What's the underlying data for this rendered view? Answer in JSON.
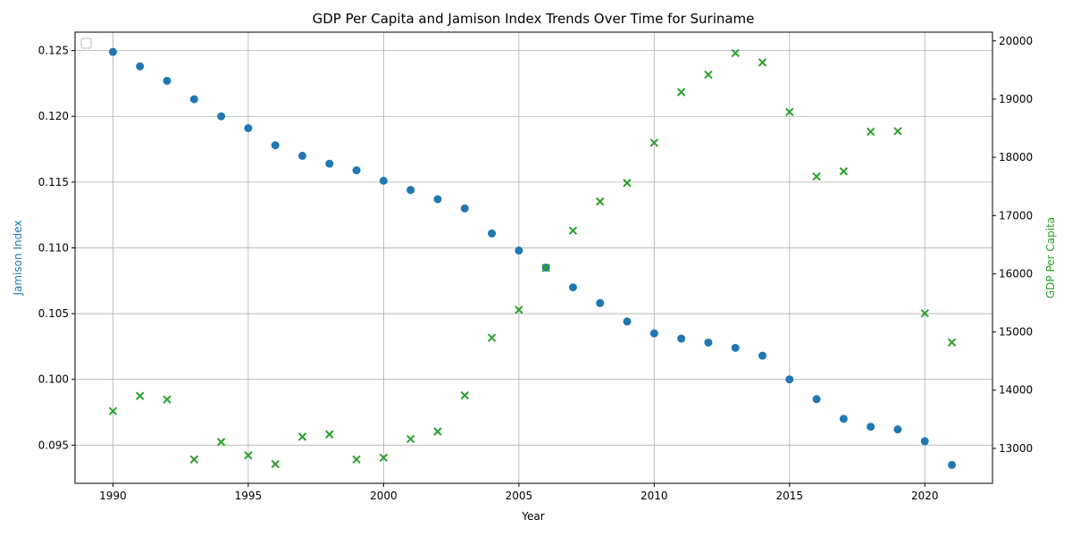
{
  "chart_data": {
    "type": "scatter",
    "title": "GDP Per Capita and Jamison Index Trends Over Time for Suriname",
    "xlabel": "Year",
    "ylabel_left": "Jamison Index",
    "ylabel_right": "GDP Per Capita",
    "xlim": [
      1988.6,
      2022.5
    ],
    "ylim_left": [
      0.0921,
      0.1264
    ],
    "ylim_right": [
      12400,
      20150
    ],
    "x_ticks": [
      1990,
      1995,
      2000,
      2005,
      2010,
      2015,
      2020
    ],
    "x_tick_labels": [
      "1990",
      "1995",
      "2000",
      "2005",
      "2010",
      "2015",
      "2020"
    ],
    "y_left_ticks": [
      0.095,
      0.1,
      0.105,
      0.11,
      0.115,
      0.12,
      0.125
    ],
    "y_left_tick_labels": [
      "0.095",
      "0.100",
      "0.105",
      "0.110",
      "0.115",
      "0.120",
      "0.125"
    ],
    "y_right_ticks": [
      13000,
      14000,
      15000,
      16000,
      17000,
      18000,
      19000,
      20000
    ],
    "y_right_tick_labels": [
      "13000",
      "14000",
      "15000",
      "16000",
      "17000",
      "18000",
      "19000",
      "20000"
    ],
    "grid": true,
    "legend": "top-left (empty)",
    "colors": {
      "jamison": "#1f77b4",
      "gdp": "#2ca02c"
    },
    "x": [
      1990,
      1991,
      1992,
      1993,
      1994,
      1995,
      1996,
      1997,
      1998,
      1999,
      2000,
      2001,
      2002,
      2003,
      2004,
      2005,
      2006,
      2007,
      2008,
      2009,
      2010,
      2011,
      2012,
      2013,
      2014,
      2015,
      2016,
      2017,
      2018,
      2019,
      2020,
      2021
    ],
    "series": [
      {
        "axis": "left",
        "marker": "circle",
        "values": [
          0.1249,
          0.1238,
          0.1227,
          0.1213,
          0.12,
          0.1191,
          0.1178,
          0.117,
          0.1164,
          0.1159,
          0.1151,
          0.1144,
          0.1137,
          0.113,
          0.1111,
          0.1098,
          0.1085,
          0.107,
          0.1058,
          0.1044,
          0.1035,
          0.1031,
          0.1028,
          0.1024,
          0.1018,
          0.1,
          0.0985,
          0.097,
          0.0964,
          0.0962,
          0.0953,
          0.0935
        ]
      },
      {
        "axis": "right",
        "marker": "x",
        "values": [
          13640,
          13900,
          13840,
          12810,
          13110,
          12880,
          12730,
          13200,
          13240,
          12810,
          12840,
          13160,
          13290,
          13910,
          14900,
          15380,
          16100,
          16740,
          17240,
          17560,
          18250,
          19120,
          19420,
          19790,
          19630,
          18780,
          17670,
          17760,
          18440,
          18450,
          15320,
          14820
        ]
      }
    ]
  }
}
